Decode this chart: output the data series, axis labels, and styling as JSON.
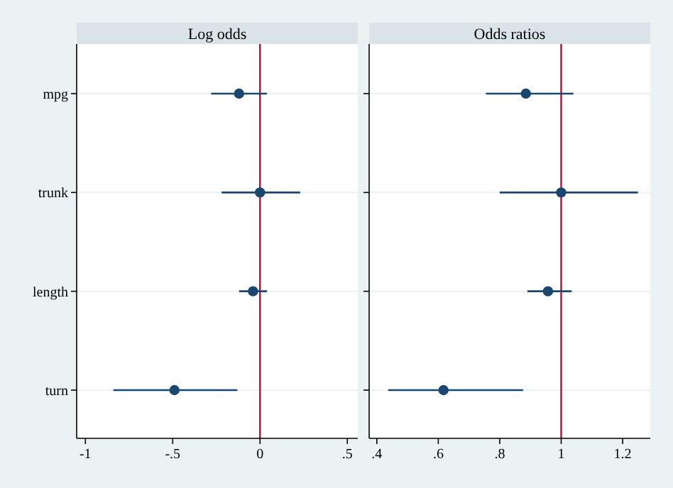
{
  "chart_data": [
    {
      "type": "scatter",
      "title": "Log odds",
      "orientation": "horizontal",
      "categories": [
        "mpg",
        "trunk",
        "length",
        "turn"
      ],
      "series": [
        {
          "color": "#1a476f",
          "values": [
            -0.12,
            0,
            -0.04,
            -0.49
          ],
          "errors": [
            [
              -0.28,
              0.04
            ],
            [
              -0.22,
              0.23
            ],
            [
              -0.12,
              0.04
            ],
            [
              -0.84,
              -0.13
            ]
          ]
        }
      ],
      "xlim": [
        -1.05,
        0.56
      ],
      "xticks": [
        -1,
        {
          "value": -0.5,
          "label": "-.5"
        },
        0,
        {
          "value": 0.5,
          "label": ".5"
        }
      ],
      "ref_lines": [
        {
          "axis": "x",
          "value": 0,
          "color": "#c10534"
        }
      ],
      "grid": "y",
      "marker": "circle"
    },
    {
      "type": "scatter",
      "title": "Odds ratios",
      "orientation": "horizontal",
      "categories": [
        null,
        null,
        null,
        null
      ],
      "series": [
        {
          "color": "#1a476f",
          "values": [
            0.885,
            1.0,
            0.957,
            0.617
          ],
          "errors": [
            [
              0.755,
              1.04
            ],
            [
              0.8,
              1.25
            ],
            [
              0.89,
              1.034
            ],
            [
              0.437,
              0.876
            ]
          ]
        }
      ],
      "xlim": [
        0.375,
        1.29
      ],
      "xticks": [
        {
          "value": 0.4,
          "label": ".4"
        },
        {
          "value": 0.6,
          "label": ".6"
        },
        {
          "value": 0.8,
          "label": ".8"
        },
        1,
        1.2
      ],
      "ref_lines": [
        {
          "axis": "x",
          "value": 1,
          "color": "#c10534"
        }
      ],
      "grid": "y",
      "marker": "circle",
      "tick_labels": "x"
    }
  ]
}
